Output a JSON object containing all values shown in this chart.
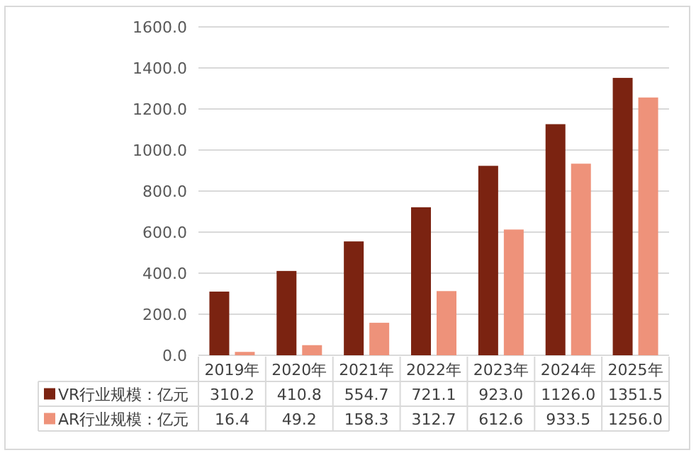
{
  "chart_data": {
    "type": "bar",
    "categories": [
      "2019年",
      "2020年",
      "2021年",
      "2022年",
      "2023年",
      "2024年",
      "2025年"
    ],
    "series": [
      {
        "name": "VR行业规模：亿元",
        "color": "#7b2311",
        "values": [
          310.2,
          410.8,
          554.7,
          721.1,
          923.0,
          1126.0,
          1351.5
        ],
        "value_labels": [
          "310.2",
          "410.8",
          "554.7",
          "721.1",
          "923.0",
          "1126.0",
          "1351.5"
        ]
      },
      {
        "name": "AR行业规模：亿元",
        "color": "#ee927a",
        "values": [
          16.4,
          49.2,
          158.3,
          312.7,
          612.6,
          933.5,
          1256.0
        ],
        "value_labels": [
          "16.4",
          "49.2",
          "158.3",
          "312.7",
          "612.6",
          "933.5",
          "1256.0"
        ]
      }
    ],
    "ylim": [
      0,
      1600
    ],
    "yticks": [
      {
        "value": 0,
        "label": "0.0"
      },
      {
        "value": 200,
        "label": "200.0"
      },
      {
        "value": 400,
        "label": "400.0"
      },
      {
        "value": 600,
        "label": "600.0"
      },
      {
        "value": 800,
        "label": "800.0"
      },
      {
        "value": 1000,
        "label": "1000.0"
      },
      {
        "value": 1200,
        "label": "1200.0"
      },
      {
        "value": 1400,
        "label": "1400.0"
      },
      {
        "value": 1600,
        "label": "1600.0"
      }
    ],
    "grid": "y",
    "legend": "bottom"
  }
}
